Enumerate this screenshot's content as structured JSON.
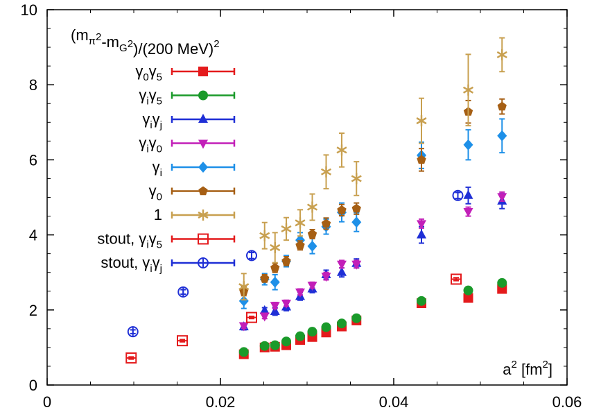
{
  "chart_data": {
    "type": "scatter",
    "title_parts": {
      "open": "(m",
      "sub1": "π",
      "sup1": "2",
      "mid": "-m",
      "sub2": "G",
      "sup2": "2",
      "tail": ")/(200 MeV)",
      "sup3": "2"
    },
    "xlabel_parts": {
      "base": "a",
      "sup": "2",
      "tail": " [fm",
      "sup2": "2",
      "close": "]"
    },
    "xlim": [
      0,
      0.06
    ],
    "ylim": [
      0,
      10
    ],
    "xticks": [
      "0",
      "0.02",
      "0.04",
      "0.06"
    ],
    "yticks": [
      "0",
      "2",
      "4",
      "6",
      "8",
      "10"
    ],
    "legend_placement": "top-left",
    "series": [
      {
        "name": "γ0γ5",
        "label_parts": [
          [
            "γ",
            ""
          ],
          [
            "0",
            "sub"
          ],
          [
            "γ",
            ""
          ],
          [
            "5",
            "sub"
          ]
        ],
        "color": "#e41a1c",
        "marker": "square-filled",
        "points": [
          [
            0.0227,
            0.82,
            0.04
          ],
          [
            0.0251,
            1.0,
            0.04
          ],
          [
            0.0263,
            1.02,
            0.04
          ],
          [
            0.0276,
            1.06,
            0.04
          ],
          [
            0.0292,
            1.2,
            0.04
          ],
          [
            0.0306,
            1.28,
            0.04
          ],
          [
            0.0322,
            1.4,
            0.04
          ],
          [
            0.034,
            1.56,
            0.04
          ],
          [
            0.0357,
            1.72,
            0.05
          ],
          [
            0.0432,
            2.18,
            0.05
          ],
          [
            0.0486,
            2.32,
            0.05
          ],
          [
            0.0525,
            2.56,
            0.05
          ]
        ]
      },
      {
        "name": "γiγ5",
        "label_parts": [
          [
            "γ",
            ""
          ],
          [
            "i",
            "sub"
          ],
          [
            "γ",
            ""
          ],
          [
            "5",
            "sub"
          ]
        ],
        "color": "#1a9a2a",
        "marker": "circle-filled",
        "points": [
          [
            0.0227,
            0.88,
            0.04
          ],
          [
            0.0251,
            1.04,
            0.04
          ],
          [
            0.0263,
            1.06,
            0.04
          ],
          [
            0.0276,
            1.16,
            0.04
          ],
          [
            0.0292,
            1.3,
            0.04
          ],
          [
            0.0306,
            1.42,
            0.04
          ],
          [
            0.0322,
            1.54,
            0.04
          ],
          [
            0.034,
            1.64,
            0.04
          ],
          [
            0.0357,
            1.78,
            0.05
          ],
          [
            0.0432,
            2.24,
            0.05
          ],
          [
            0.0486,
            2.52,
            0.05
          ],
          [
            0.0525,
            2.72,
            0.05
          ]
        ]
      },
      {
        "name": "γiγj",
        "label_parts": [
          [
            "γ",
            ""
          ],
          [
            "i",
            "sub"
          ],
          [
            "γ",
            ""
          ],
          [
            "j",
            "sub"
          ]
        ],
        "color": "#1f2fd6",
        "marker": "triangle-filled",
        "points": [
          [
            0.0227,
            1.55,
            0.08
          ],
          [
            0.0251,
            1.98,
            0.08
          ],
          [
            0.0263,
            1.96,
            0.1
          ],
          [
            0.0276,
            2.08,
            0.1
          ],
          [
            0.0292,
            2.36,
            0.1
          ],
          [
            0.0306,
            2.56,
            0.1
          ],
          [
            0.0322,
            2.94,
            0.12
          ],
          [
            0.034,
            3.0,
            0.12
          ],
          [
            0.0357,
            3.24,
            0.12
          ],
          [
            0.0432,
            4.0,
            0.22
          ],
          [
            0.0486,
            5.05,
            0.22
          ],
          [
            0.0525,
            4.9,
            0.2
          ]
        ]
      },
      {
        "name": "γiγ0",
        "label_parts": [
          [
            "γ",
            ""
          ],
          [
            "i",
            "sub"
          ],
          [
            "γ",
            ""
          ],
          [
            "0",
            "sub"
          ]
        ],
        "color": "#c21fb8",
        "marker": "triangle-down-filled",
        "points": [
          [
            0.0227,
            1.58,
            0.07
          ],
          [
            0.0251,
            1.84,
            0.07
          ],
          [
            0.0263,
            2.12,
            0.08
          ],
          [
            0.0276,
            2.18,
            0.08
          ],
          [
            0.0292,
            2.48,
            0.08
          ],
          [
            0.0306,
            2.66,
            0.08
          ],
          [
            0.0322,
            2.9,
            0.1
          ],
          [
            0.034,
            3.22,
            0.1
          ],
          [
            0.0357,
            3.22,
            0.1
          ],
          [
            0.0432,
            4.3,
            0.12
          ],
          [
            0.0486,
            4.62,
            0.12
          ],
          [
            0.0525,
            5.02,
            0.12
          ]
        ]
      },
      {
        "name": "γi",
        "label_parts": [
          [
            "γ",
            ""
          ],
          [
            "i",
            "sub"
          ]
        ],
        "color": "#1e90e8",
        "marker": "diamond-filled",
        "points": [
          [
            0.0227,
            2.24,
            0.2
          ],
          [
            0.0251,
            2.82,
            0.15
          ],
          [
            0.0263,
            2.74,
            0.2
          ],
          [
            0.0276,
            3.3,
            0.15
          ],
          [
            0.0292,
            3.86,
            0.2
          ],
          [
            0.0306,
            3.7,
            0.2
          ],
          [
            0.0322,
            4.22,
            0.2
          ],
          [
            0.034,
            4.6,
            0.25
          ],
          [
            0.0357,
            4.34,
            0.25
          ],
          [
            0.0432,
            6.12,
            0.35
          ],
          [
            0.0486,
            6.4,
            0.4
          ],
          [
            0.0525,
            6.64,
            0.45
          ]
        ]
      },
      {
        "name": "γ0",
        "label_parts": [
          [
            "γ",
            ""
          ],
          [
            "0",
            "sub"
          ]
        ],
        "color": "#a65f14",
        "marker": "pentagon-filled",
        "points": [
          [
            0.0227,
            2.5,
            0.12
          ],
          [
            0.0251,
            2.84,
            0.1
          ],
          [
            0.0263,
            3.12,
            0.12
          ],
          [
            0.0276,
            3.3,
            0.12
          ],
          [
            0.0292,
            3.72,
            0.12
          ],
          [
            0.0306,
            4.02,
            0.12
          ],
          [
            0.0322,
            4.3,
            0.15
          ],
          [
            0.034,
            4.66,
            0.15
          ],
          [
            0.0357,
            4.7,
            0.15
          ],
          [
            0.0432,
            6.0,
            0.3
          ],
          [
            0.0486,
            7.28,
            0.3
          ],
          [
            0.0525,
            7.42,
            0.2
          ]
        ]
      },
      {
        "name": "1",
        "label_parts": [
          [
            "1",
            ""
          ]
        ],
        "color": "#c8a050",
        "marker": "star",
        "points": [
          [
            0.0227,
            2.62,
            0.35
          ],
          [
            0.0251,
            3.98,
            0.35
          ],
          [
            0.0263,
            3.66,
            0.4
          ],
          [
            0.0276,
            4.16,
            0.3
          ],
          [
            0.0292,
            4.32,
            0.35
          ],
          [
            0.0306,
            4.74,
            0.35
          ],
          [
            0.0322,
            5.68,
            0.45
          ],
          [
            0.034,
            6.26,
            0.45
          ],
          [
            0.0357,
            5.5,
            0.45
          ],
          [
            0.0432,
            7.04,
            0.6
          ],
          [
            0.0486,
            7.86,
            0.95
          ],
          [
            0.0525,
            8.8,
            0.45
          ]
        ]
      },
      {
        "name": "stout, γiγ5",
        "label_parts": [
          [
            "stout, γ",
            ""
          ],
          [
            "i",
            "sub"
          ],
          [
            "γ",
            ""
          ],
          [
            "5",
            "sub"
          ]
        ],
        "color": "#e41a1c",
        "marker": "square-open",
        "points": [
          [
            0.0097,
            0.72,
            0.03
          ],
          [
            0.0156,
            1.18,
            0.03
          ],
          [
            0.0236,
            1.8,
            0.03
          ],
          [
            0.0472,
            2.82,
            0.04
          ]
        ]
      },
      {
        "name": "stout, γiγj",
        "label_parts": [
          [
            "stout, γ",
            ""
          ],
          [
            "i",
            "sub"
          ],
          [
            "γ",
            ""
          ],
          [
            "j",
            "sub"
          ]
        ],
        "color": "#1f2fd6",
        "marker": "circle-open",
        "points": [
          [
            0.0099,
            1.42,
            0.05
          ],
          [
            0.0157,
            2.48,
            0.06
          ],
          [
            0.0236,
            3.45,
            0.08
          ],
          [
            0.0474,
            5.05,
            0.08
          ]
        ]
      }
    ]
  }
}
